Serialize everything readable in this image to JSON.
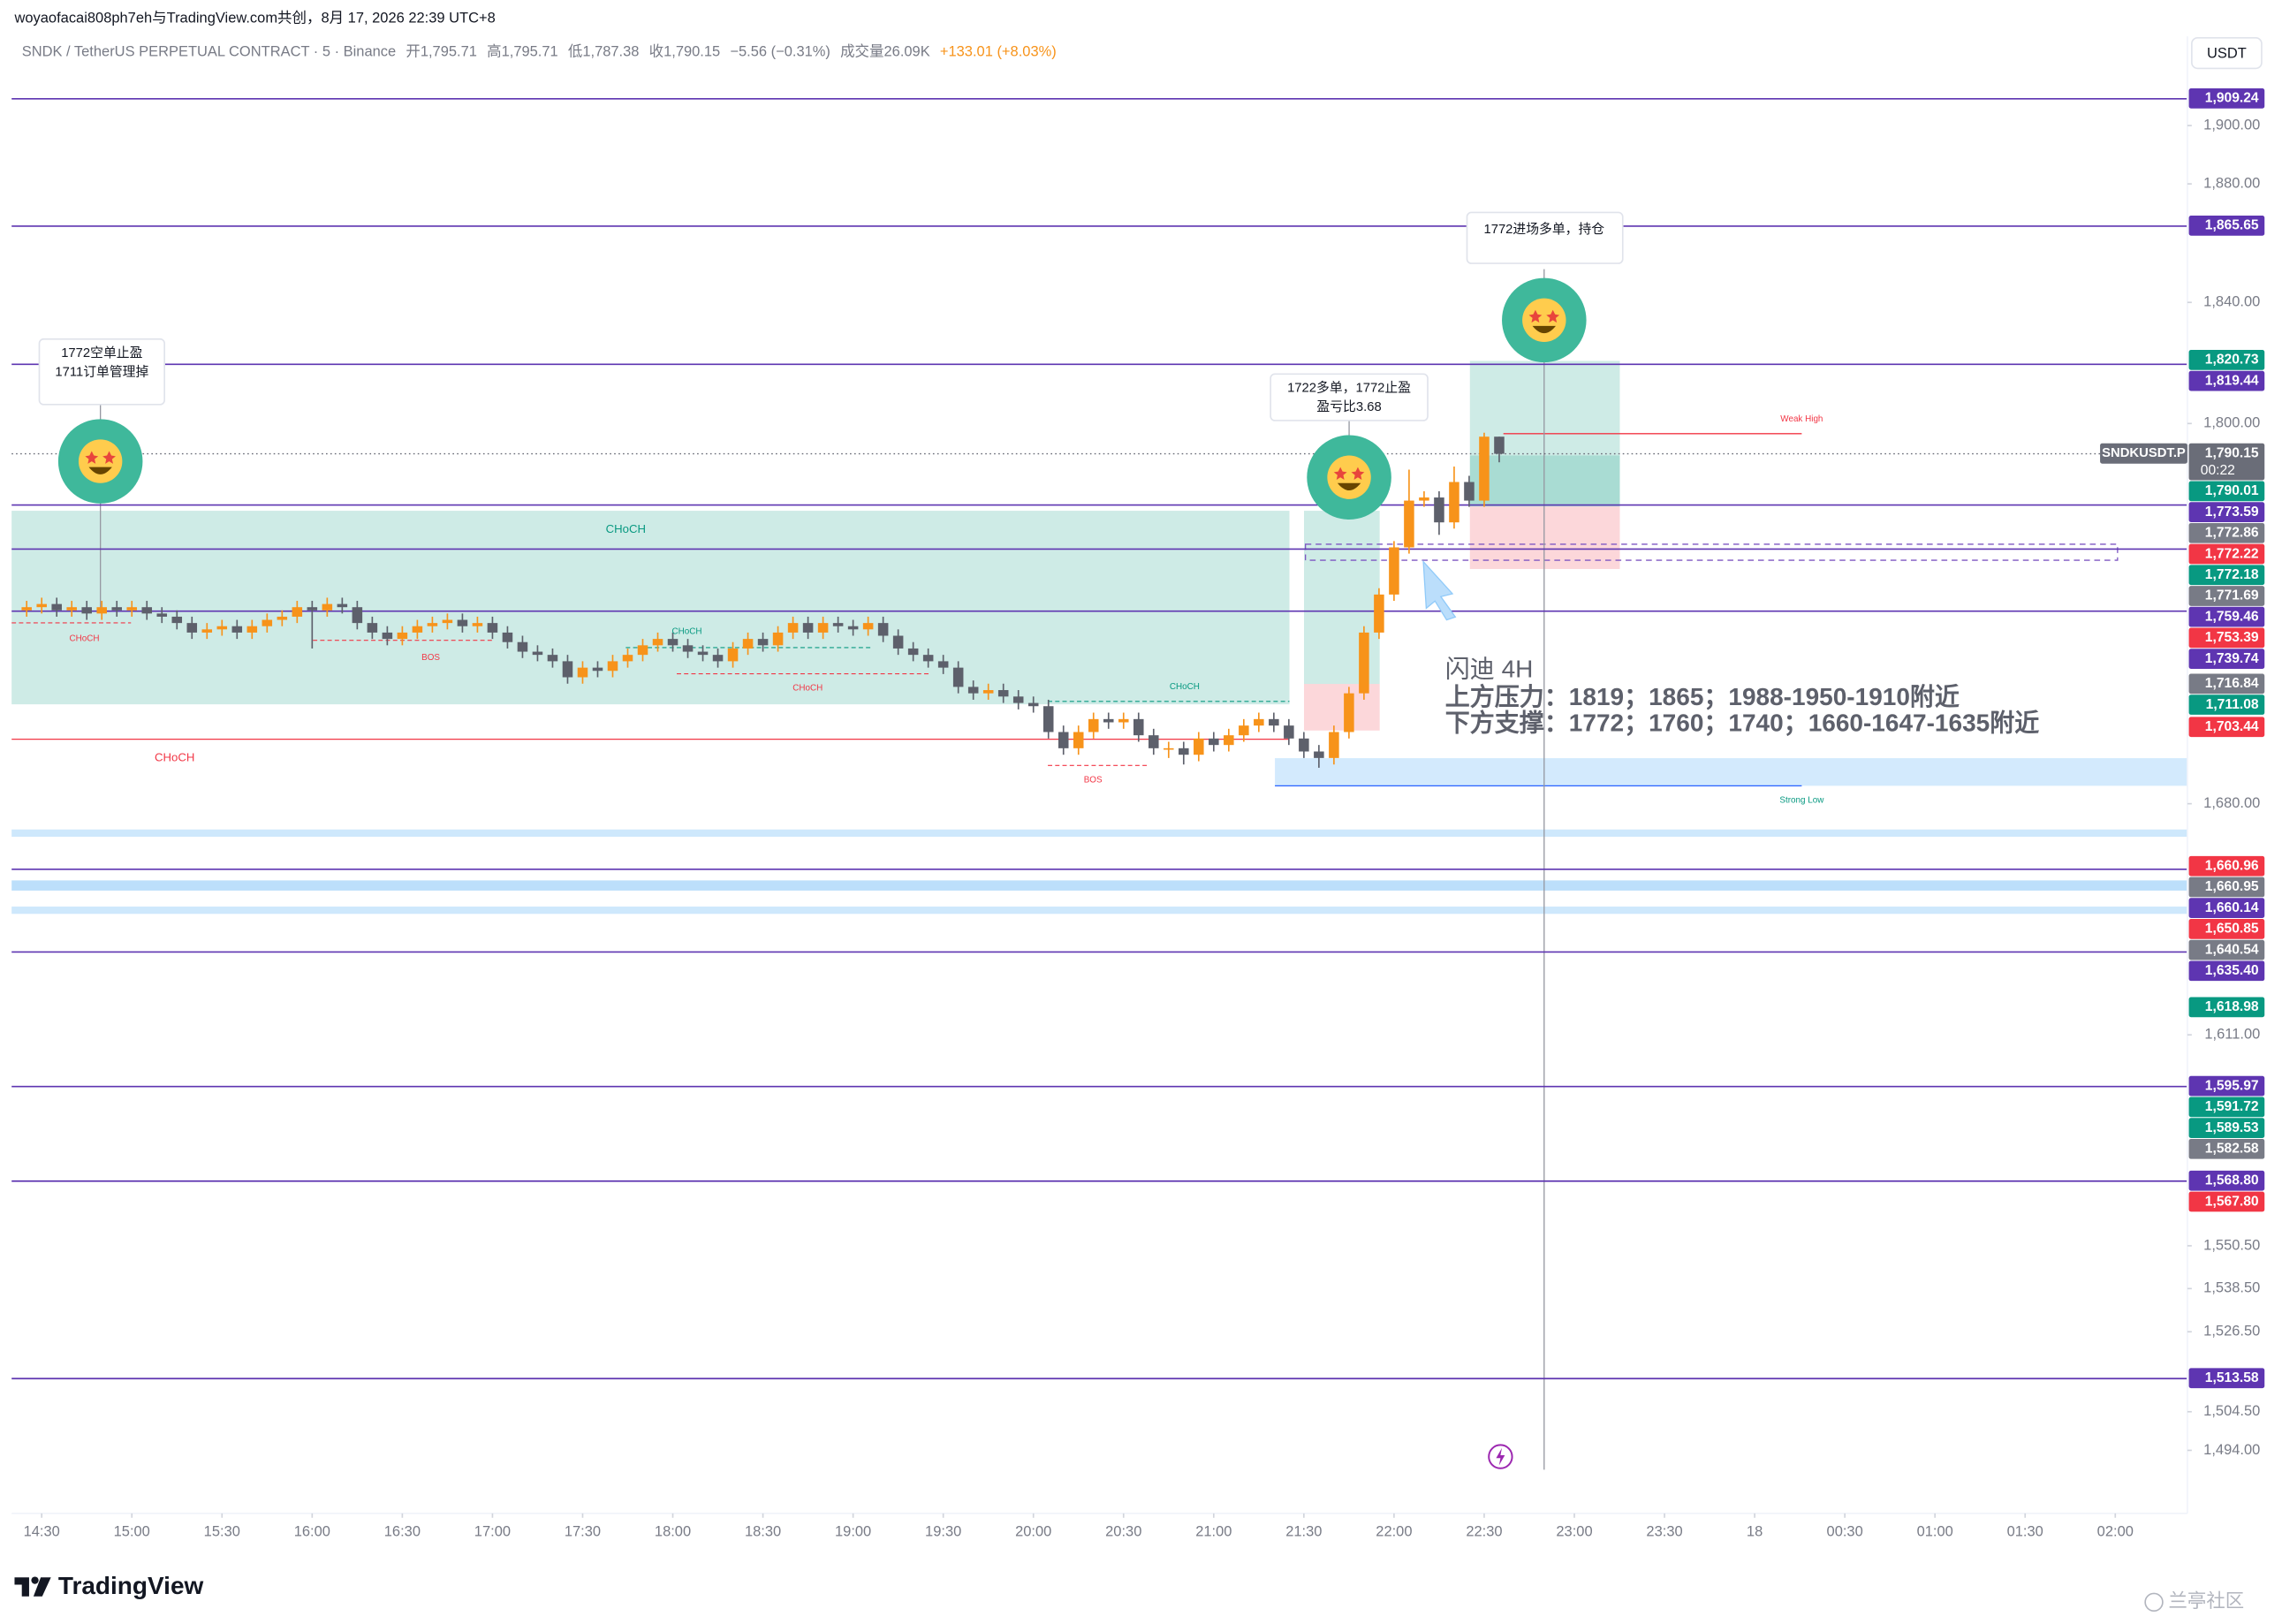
{
  "header": {
    "title": "woyaofacai808ph7eh与TradingView.com共创，8月 17, 2026 22:39 UTC+8",
    "symbol": "SNDK / TetherUS PERPETUAL CONTRACT · 5 · Binance",
    "ohlc": [
      "开1,795.71",
      "高1,795.71",
      "低1,787.38",
      "收1,790.15"
    ],
    "change": "−5.56 (−0.31%)",
    "volume": "成交量26.09K",
    "total_change": "+133.01 (+8.03%)",
    "currency": "USDT"
  },
  "chart_data": {
    "type": "candlestick",
    "log_scale": true,
    "grid": false,
    "ylim": [
      1477,
      1931
    ],
    "yticks": [
      {
        "value": 1900,
        "label": "1,900.00"
      },
      {
        "value": 1880,
        "label": "1,880.00"
      },
      {
        "value": 1840,
        "label": "1,840.00"
      },
      {
        "value": 1800,
        "label": "1,800.00"
      },
      {
        "value": 1680,
        "label": "1,680.00"
      },
      {
        "value": 1611,
        "label": "1,611.00"
      },
      {
        "value": 1550.5,
        "label": "1,550.50"
      },
      {
        "value": 1538.5,
        "label": "1,538.50"
      },
      {
        "value": 1526.5,
        "label": "1,526.50"
      },
      {
        "value": 1504.5,
        "label": "1,504.50"
      },
      {
        "value": 1494,
        "label": "1,494.00"
      }
    ],
    "xlim": [
      "14:20",
      "02:24"
    ],
    "xticks": [
      "14:30",
      "15:00",
      "15:30",
      "16:00",
      "16:30",
      "17:00",
      "17:30",
      "18:00",
      "18:30",
      "19:00",
      "19:30",
      "20:00",
      "20:30",
      "21:00",
      "21:30",
      "22:00",
      "22:30",
      "23:00",
      "23:30",
      {
        "value": "00:00",
        "label": "18"
      },
      "00:30",
      "01:00",
      "01:30",
      "02:00"
    ],
    "x": [
      "14:25",
      "14:30",
      "14:35",
      "14:40",
      "14:45",
      "14:50",
      "14:55",
      "15:00",
      "15:05",
      "15:10",
      "15:15",
      "15:20",
      "15:25",
      "15:30",
      "15:35",
      "15:40",
      "15:45",
      "15:50",
      "15:55",
      "16:00",
      "16:05",
      "16:10",
      "16:15",
      "16:20",
      "16:25",
      "16:30",
      "16:35",
      "16:40",
      "16:45",
      "16:50",
      "16:55",
      "17:00",
      "17:05",
      "17:10",
      "17:15",
      "17:20",
      "17:25",
      "17:30",
      "17:35",
      "17:40",
      "17:45",
      "17:50",
      "17:55",
      "18:00",
      "18:05",
      "18:10",
      "18:15",
      "18:20",
      "18:25",
      "18:30",
      "18:35",
      "18:40",
      "18:45",
      "18:50",
      "18:55",
      "19:00",
      "19:05",
      "19:10",
      "19:15",
      "19:20",
      "19:25",
      "19:30",
      "19:35",
      "19:40",
      "19:45",
      "19:50",
      "19:55",
      "20:00",
      "20:05",
      "20:10",
      "20:15",
      "20:20",
      "20:25",
      "20:30",
      "20:35",
      "20:40",
      "20:45",
      "20:50",
      "20:55",
      "21:00",
      "21:05",
      "21:10",
      "21:15",
      "21:20",
      "21:25",
      "21:30",
      "21:35",
      "21:40",
      "21:45",
      "21:50",
      "21:55",
      "22:00",
      "22:05",
      "22:10",
      "22:15",
      "22:20",
      "22:25",
      "22:30",
      "22:35"
    ],
    "series": [
      {
        "name": "SNDKUSDT.P",
        "up_color": "#f7931a",
        "down_color": "#5d606b",
        "open": [
          1740,
          1741,
          1742,
          1740,
          1741,
          1739,
          1741,
          1740,
          1741,
          1739,
          1738,
          1736,
          1733,
          1734,
          1735,
          1733,
          1735,
          1737,
          1738,
          1741,
          1740,
          1742,
          1741,
          1736,
          1733,
          1731,
          1733,
          1735,
          1736,
          1737,
          1735,
          1736,
          1733,
          1730,
          1727,
          1726,
          1724,
          1719,
          1722,
          1721,
          1724,
          1726,
          1729,
          1731,
          1729,
          1727,
          1726,
          1724,
          1728,
          1731,
          1729,
          1733,
          1736,
          1733,
          1736,
          1735,
          1734,
          1736,
          1732,
          1728,
          1726,
          1724,
          1722,
          1716,
          1714,
          1715,
          1713,
          1711,
          1710,
          1702,
          1697,
          1702,
          1706,
          1705,
          1706,
          1701,
          1697,
          1697,
          1695,
          1700,
          1698,
          1701,
          1704,
          1706,
          1704,
          1700,
          1696,
          1694,
          1702,
          1714,
          1733,
          1745,
          1760,
          1775,
          1776,
          1768,
          1781,
          1775,
          1795.71
        ],
        "high": [
          1743,
          1744,
          1744,
          1743,
          1743,
          1743,
          1743,
          1743,
          1743,
          1741,
          1740,
          1738,
          1736,
          1737,
          1737,
          1737,
          1739,
          1740,
          1743,
          1743,
          1744,
          1744,
          1743,
          1738,
          1735,
          1735,
          1737,
          1738,
          1739,
          1739,
          1738,
          1738,
          1735,
          1732,
          1729,
          1728,
          1726,
          1724,
          1724,
          1726,
          1728,
          1731,
          1733,
          1733,
          1731,
          1729,
          1728,
          1730,
          1733,
          1733,
          1735,
          1738,
          1738,
          1738,
          1738,
          1737,
          1738,
          1738,
          1734,
          1730,
          1728,
          1726,
          1724,
          1718,
          1717,
          1717,
          1715,
          1713,
          1712,
          1704,
          1704,
          1708,
          1708,
          1708,
          1708,
          1703,
          1699,
          1699,
          1702,
          1702,
          1703,
          1706,
          1708,
          1708,
          1706,
          1702,
          1698,
          1704,
          1716,
          1735,
          1747,
          1762,
          1785,
          1778,
          1778,
          1786,
          1783,
          1797,
          1795.71
        ],
        "low": [
          1738,
          1739,
          1738,
          1738,
          1737,
          1737,
          1738,
          1738,
          1737,
          1736,
          1734,
          1731,
          1731,
          1732,
          1731,
          1731,
          1733,
          1735,
          1736,
          1728,
          1738,
          1739,
          1734,
          1731,
          1729,
          1729,
          1731,
          1733,
          1734,
          1733,
          1733,
          1731,
          1728,
          1725,
          1724,
          1722,
          1717,
          1717,
          1719,
          1719,
          1722,
          1724,
          1727,
          1727,
          1725,
          1724,
          1722,
          1722,
          1726,
          1727,
          1727,
          1731,
          1731,
          1731,
          1733,
          1732,
          1732,
          1730,
          1726,
          1724,
          1722,
          1720,
          1714,
          1712,
          1712,
          1711,
          1709,
          1708,
          1700,
          1695,
          1695,
          1700,
          1703,
          1703,
          1699,
          1695,
          1694,
          1692,
          1693,
          1696,
          1696,
          1699,
          1702,
          1702,
          1698,
          1694,
          1691,
          1692,
          1700,
          1712,
          1731,
          1743,
          1758,
          1773,
          1764,
          1766,
          1773,
          1773,
          1787.38
        ],
        "close": [
          1741,
          1742,
          1740,
          1741,
          1739,
          1741,
          1740,
          1741,
          1739,
          1738,
          1736,
          1733,
          1734,
          1735,
          1733,
          1735,
          1737,
          1738,
          1741,
          1740,
          1742,
          1741,
          1736,
          1733,
          1731,
          1733,
          1735,
          1736,
          1737,
          1735,
          1736,
          1733,
          1730,
          1727,
          1726,
          1724,
          1719,
          1722,
          1721,
          1724,
          1726,
          1729,
          1731,
          1729,
          1727,
          1726,
          1724,
          1728,
          1731,
          1729,
          1733,
          1736,
          1733,
          1736,
          1735,
          1734,
          1736,
          1732,
          1728,
          1726,
          1724,
          1722,
          1716,
          1714,
          1715,
          1713,
          1711,
          1710,
          1702,
          1697,
          1702,
          1706,
          1705,
          1706,
          1701,
          1697,
          1697,
          1695,
          1700,
          1698,
          1701,
          1704,
          1706,
          1704,
          1700,
          1696,
          1694,
          1702,
          1714,
          1733,
          1745,
          1760,
          1775,
          1776,
          1768,
          1781,
          1775,
          1795.71,
          1790.15
        ]
      }
    ],
    "countdown": "00:22",
    "price_levels": [
      {
        "value": 1909.24,
        "label": "1,909.24",
        "color": "#5e35b1",
        "line": "solid"
      },
      {
        "value": 1865.65,
        "label": "1,865.65",
        "color": "#5e35b1",
        "line": "solid"
      },
      {
        "value": 1820.73,
        "label": "1,820.73",
        "color": "#089981"
      },
      {
        "value": 1819.44,
        "label": "1,819.44",
        "color": "#5e35b1",
        "line": "solid"
      },
      {
        "value": 1790.15,
        "label": "1,790.15",
        "color": "#6a6d78",
        "line": "dotted"
      },
      {
        "value": 1790.01,
        "label": "1,790.01",
        "color": "#089981"
      },
      {
        "value": 1773.59,
        "label": "1,773.59",
        "color": "#5e35b1",
        "line": "solid"
      },
      {
        "value": 1772.86,
        "label": "1,772.86",
        "color": "#787b86"
      },
      {
        "value": 1772.22,
        "label": "1,772.22",
        "color": "#f23645"
      },
      {
        "value": 1772.18,
        "label": "1,772.18",
        "color": "#089981"
      },
      {
        "value": 1771.69,
        "label": "1,771.69",
        "color": "#787b86"
      },
      {
        "value": 1759.46,
        "label": "1,759.46",
        "color": "#5e35b1",
        "line": "solid"
      },
      {
        "value": 1753.39,
        "label": "1,753.39",
        "color": "#f23645"
      },
      {
        "value": 1739.74,
        "label": "1,739.74",
        "color": "#5e35b1",
        "line": "solid"
      },
      {
        "value": 1716.84,
        "label": "1,716.84",
        "color": "#787b86"
      },
      {
        "value": 1711.08,
        "label": "1,711.08",
        "color": "#089981"
      },
      {
        "value": 1703.44,
        "label": "1,703.44",
        "color": "#f23645"
      },
      {
        "value": 1660.96,
        "label": "1,660.96",
        "color": "#f23645"
      },
      {
        "value": 1660.95,
        "label": "1,660.95",
        "color": "#787b86"
      },
      {
        "value": 1660.14,
        "label": "1,660.14",
        "color": "#5e35b1",
        "line": "solid"
      },
      {
        "value": 1650.85,
        "label": "1,650.85",
        "color": "#f23645"
      },
      {
        "value": 1640.54,
        "label": "1,640.54",
        "color": "#787b86"
      },
      {
        "value": 1635.4,
        "label": "1,635.40",
        "color": "#5e35b1",
        "line": "solid"
      },
      {
        "value": 1618.98,
        "label": "1,618.98",
        "color": "#089981"
      },
      {
        "value": 1595.97,
        "label": "1,595.97",
        "color": "#5e35b1",
        "line": "solid"
      },
      {
        "value": 1591.72,
        "label": "1,591.72",
        "color": "#089981"
      },
      {
        "value": 1589.53,
        "label": "1,589.53",
        "color": "#089981"
      },
      {
        "value": 1582.58,
        "label": "1,582.58",
        "color": "#787b86"
      },
      {
        "value": 1568.8,
        "label": "1,568.80",
        "color": "#5e35b1",
        "line": "solid"
      },
      {
        "value": 1567.8,
        "label": "1,567.80",
        "color": "#f23645"
      },
      {
        "value": 1513.58,
        "label": "1,513.58",
        "color": "#5e35b1",
        "line": "solid"
      }
    ],
    "annotations": {
      "callout_1": [
        "1772空单止盈",
        "1711订单管理掉"
      ],
      "callout_2": [
        "1722多单，1772止盈",
        "盈亏比3.68"
      ],
      "callout_3": [
        "1772进场多单，持仓"
      ],
      "note": [
        "闪迪 4H",
        "上方压力：1819；1865；1988-1950-1910附近",
        "下方支撑：1772；1760；1740；1660-1647-1635附近"
      ],
      "choch": "CHoCH",
      "bos": "BOS",
      "weak_high": "Weak High",
      "strong_low": "Strong Low"
    }
  },
  "footer": {
    "brand": "TradingView",
    "watermark": "兰亭社区"
  }
}
